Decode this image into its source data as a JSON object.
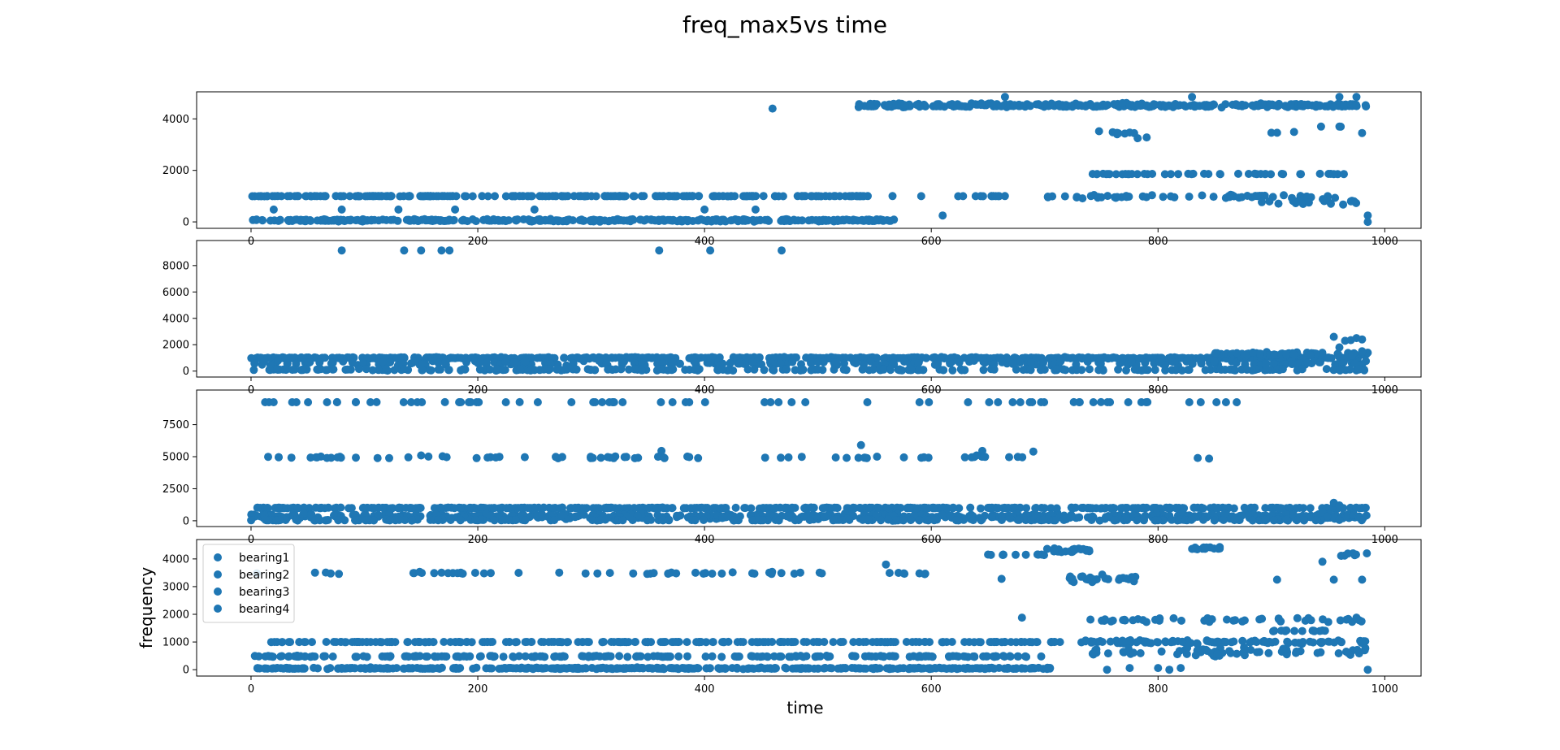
{
  "chart_data": {
    "type": "scatter",
    "title": "freq_max5vs time",
    "xlabel": "time",
    "ylabel": "frequency",
    "legend": {
      "entries": [
        "bearing1",
        "bearing2",
        "bearing3",
        "bearing4"
      ],
      "placement": "upper-left of bottom panel"
    },
    "marker_color": "#1f77b4",
    "grid": false,
    "panels": [
      {
        "name": "bearing1",
        "xlim": [
          -48,
          1032
        ],
        "ylim": [
          -250,
          5050
        ],
        "xticks": [
          0,
          200,
          400,
          600,
          800,
          1000
        ],
        "yticks": [
          0,
          2000,
          4000
        ],
        "series": [
          {
            "x": [
              0,
              550
            ],
            "y": [
              1000,
              1000
            ],
            "n": 230,
            "jitter": 8
          },
          {
            "x": [
              0,
              570
            ],
            "y": [
              60,
              60
            ],
            "n": 380,
            "jitter": 60
          },
          {
            "x": [
              535,
              985
            ],
            "y": [
              4520,
              4520
            ],
            "n": 330,
            "jitter": 110
          },
          {
            "x": [
              740,
              970
            ],
            "y": [
              1860,
              1860
            ],
            "n": 45,
            "jitter": 15
          },
          {
            "x": [
              700,
              975
            ],
            "y": [
              980,
              980
            ],
            "n": 55,
            "jitter": 90
          },
          {
            "x": [
              565,
              665
            ],
            "y": [
              1000,
              1000
            ],
            "n": 14,
            "jitter": 6
          },
          {
            "x": [
              890,
              975
            ],
            "y": [
              800,
              800
            ],
            "n": 18,
            "jitter": 200
          },
          {
            "x": [
              760,
              780
            ],
            "y": [
              3450,
              3450
            ],
            "n": 6,
            "jitter": 80
          },
          {
            "x": [
              940,
              965
            ],
            "y": [
              3700,
              3700
            ],
            "n": 2,
            "jitter": 10
          }
        ],
        "points": [
          [
            20,
            480
          ],
          [
            80,
            480
          ],
          [
            130,
            480
          ],
          [
            180,
            480
          ],
          [
            250,
            480
          ],
          [
            400,
            480
          ],
          [
            445,
            480
          ],
          [
            460,
            4400
          ],
          [
            665,
            4850
          ],
          [
            830,
            4850
          ],
          [
            960,
            4850
          ],
          [
            975,
            4850
          ],
          [
            610,
            250
          ],
          [
            985,
            250
          ],
          [
            985,
            0
          ],
          [
            748,
            3520
          ],
          [
            900,
            3460
          ],
          [
            905,
            3460
          ],
          [
            765,
            3440
          ],
          [
            775,
            3470
          ],
          [
            782,
            3250
          ],
          [
            790,
            3280
          ],
          [
            920,
            3490
          ],
          [
            960,
            3700
          ],
          [
            980,
            3450
          ]
        ]
      },
      {
        "name": "bearing2",
        "xlim": [
          -48,
          1032
        ],
        "ylim": [
          -450,
          9900
        ],
        "xticks": [
          0,
          200,
          400,
          600,
          800,
          1000
        ],
        "yticks": [
          0,
          2000,
          4000,
          6000,
          8000
        ],
        "series": [
          {
            "x": [
              0,
              985
            ],
            "y": [
              1000,
              1000
            ],
            "n": 560,
            "jitter": 80
          },
          {
            "x": [
              0,
              985
            ],
            "y": [
              600,
              600
            ],
            "n": 260,
            "jitter": 250
          },
          {
            "x": [
              0,
              985
            ],
            "y": [
              100,
              100
            ],
            "n": 240,
            "jitter": 80
          },
          {
            "x": [
              850,
              985
            ],
            "y": [
              1300,
              1300
            ],
            "n": 60,
            "jitter": 200
          }
        ],
        "points": [
          [
            80,
            9150
          ],
          [
            135,
            9150
          ],
          [
            150,
            9150
          ],
          [
            168,
            9150
          ],
          [
            175,
            9150
          ],
          [
            360,
            9150
          ],
          [
            405,
            9150
          ],
          [
            468,
            9150
          ],
          [
            955,
            2600
          ],
          [
            975,
            2500
          ],
          [
            970,
            2350
          ],
          [
            980,
            2400
          ],
          [
            965,
            2300
          ],
          [
            985,
            1400
          ],
          [
            980,
            1500
          ],
          [
            960,
            1800
          ]
        ]
      },
      {
        "name": "bearing3",
        "xlim": [
          -48,
          1032
        ],
        "ylim": [
          -450,
          10200
        ],
        "xticks": [
          0,
          200,
          400,
          600,
          800,
          1000
        ],
        "yticks": [
          0,
          2500,
          5000,
          7500
        ],
        "series": [
          {
            "x": [
              5,
              985
            ],
            "y": [
              1000,
              1000
            ],
            "n": 440,
            "jitter": 50
          },
          {
            "x": [
              0,
              985
            ],
            "y": [
              350,
              350
            ],
            "n": 620,
            "jitter": 300
          },
          {
            "x": [
              0,
              985
            ],
            "y": [
              50,
              50
            ],
            "n": 200,
            "jitter": 50
          },
          {
            "x": [
              10,
              870
            ],
            "y": [
              9250,
              9250
            ],
            "n": 75,
            "jitter": 5
          },
          {
            "x": [
              0,
              690
            ],
            "y": [
              4950,
              4950
            ],
            "n": 70,
            "jitter": 120
          }
        ],
        "points": [
          [
            538,
            5900
          ],
          [
            362,
            5450
          ],
          [
            645,
            5450
          ],
          [
            690,
            5400
          ],
          [
            150,
            5100
          ],
          [
            640,
            5100
          ],
          [
            835,
            4900
          ],
          [
            845,
            4850
          ],
          [
            955,
            1400
          ],
          [
            960,
            1200
          ]
        ]
      },
      {
        "name": "bearing4",
        "xlim": [
          -48,
          1032
        ],
        "ylim": [
          -230,
          4700
        ],
        "xticks": [
          0,
          200,
          400,
          600,
          800,
          1000
        ],
        "yticks": [
          0,
          1000,
          2000,
          3000,
          4000
        ],
        "series": [
          {
            "x": [
              0,
              705
            ],
            "y": [
              50,
              50
            ],
            "n": 420,
            "jitter": 35
          },
          {
            "x": [
              10,
              720
            ],
            "y": [
              1000,
              1000
            ],
            "n": 230,
            "jitter": 5
          },
          {
            "x": [
              0,
              700
            ],
            "y": [
              480,
              480
            ],
            "n": 210,
            "jitter": 30
          },
          {
            "x": [
              55,
              600
            ],
            "y": [
              3480,
              3480
            ],
            "n": 55,
            "jitter": 60
          },
          {
            "x": [
              650,
              700
            ],
            "y": [
              4150,
              4150
            ],
            "n": 12,
            "jitter": 20
          },
          {
            "x": [
              700,
              740
            ],
            "y": [
              4300,
              4300
            ],
            "n": 24,
            "jitter": 120
          },
          {
            "x": [
              720,
              780
            ],
            "y": [
              3300,
              3300
            ],
            "n": 30,
            "jitter": 180
          },
          {
            "x": [
              830,
              855
            ],
            "y": [
              4380,
              4380
            ],
            "n": 15,
            "jitter": 70
          },
          {
            "x": [
              730,
              985
            ],
            "y": [
              1000,
              1000
            ],
            "n": 95,
            "jitter": 80
          },
          {
            "x": [
              740,
              985
            ],
            "y": [
              1800,
              1800
            ],
            "n": 45,
            "jitter": 120
          },
          {
            "x": [
              740,
              985
            ],
            "y": [
              650,
              650
            ],
            "n": 65,
            "jitter": 220
          },
          {
            "x": [
              900,
              950
            ],
            "y": [
              1400,
              1400
            ],
            "n": 15,
            "jitter": 30
          },
          {
            "x": [
              960,
              985
            ],
            "y": [
              4150,
              4150
            ],
            "n": 8,
            "jitter": 120
          }
        ],
        "points": [
          [
            5,
            3480
          ],
          [
            560,
            3800
          ],
          [
            662,
            3280
          ],
          [
            680,
            1880
          ],
          [
            755,
            0
          ],
          [
            775,
            60
          ],
          [
            800,
            60
          ],
          [
            810,
            0
          ],
          [
            820,
            60
          ],
          [
            905,
            3250
          ],
          [
            945,
            3900
          ],
          [
            955,
            3250
          ],
          [
            980,
            3250
          ],
          [
            985,
            0
          ],
          [
            975,
            1880
          ]
        ]
      }
    ]
  }
}
